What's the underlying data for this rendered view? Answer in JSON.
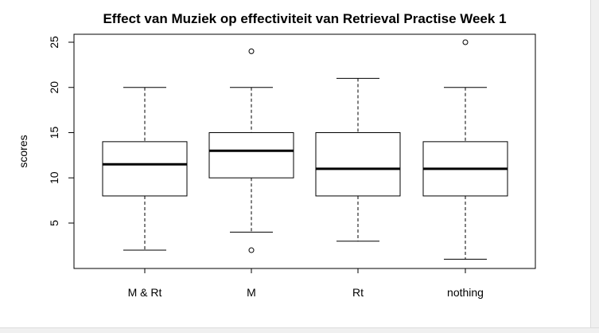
{
  "chart_data": {
    "type": "boxplot",
    "title": "Effect van Muziek op effectiviteit van Retrieval Practise Week 1",
    "xlabel": "",
    "ylabel": "scores",
    "ylim": [
      0,
      26
    ],
    "yticks": [
      "5",
      "10",
      "15",
      "20",
      "25"
    ],
    "categories": [
      "M & Rt",
      "M",
      "Rt",
      "nothing"
    ],
    "boxes": [
      {
        "whisker_low": 2,
        "q1": 8,
        "median": 11.5,
        "q3": 14,
        "whisker_high": 20,
        "outliers": []
      },
      {
        "whisker_low": 4,
        "q1": 10,
        "median": 13,
        "q3": 15,
        "whisker_high": 20,
        "outliers": [
          2,
          24
        ]
      },
      {
        "whisker_low": 3,
        "q1": 8,
        "median": 11,
        "q3": 15,
        "whisker_high": 21,
        "outliers": []
      },
      {
        "whisker_low": 1,
        "q1": 8,
        "median": 11,
        "q3": 14,
        "whisker_high": 20,
        "outliers": [
          25
        ]
      }
    ],
    "grid": false,
    "legend": "none"
  }
}
